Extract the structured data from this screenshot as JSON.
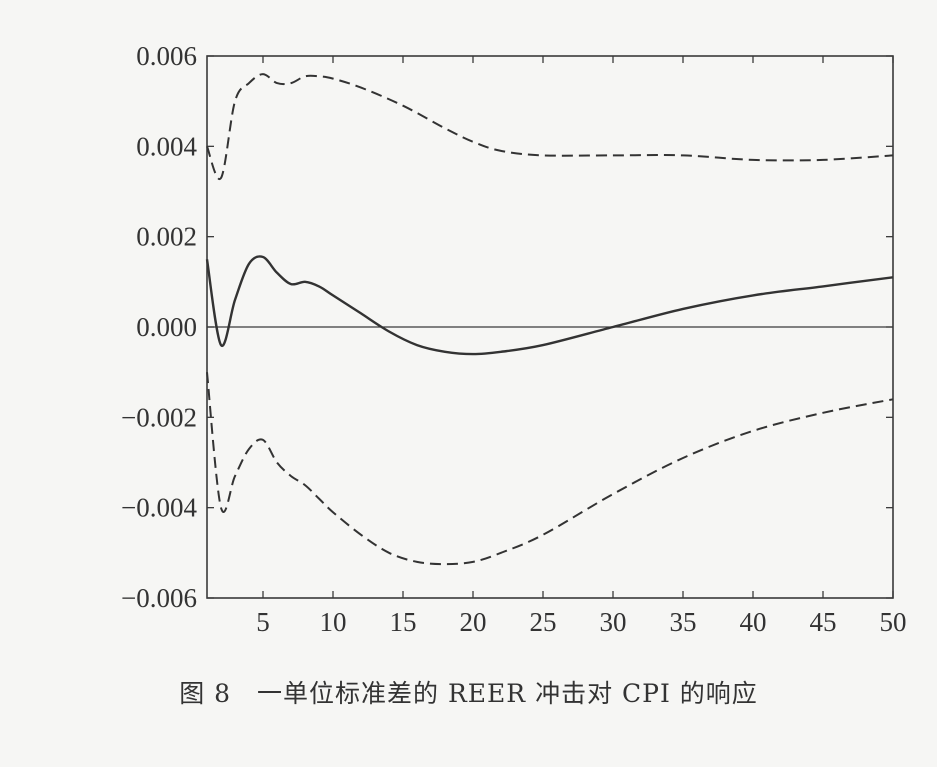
{
  "caption": "图 8　一单位标准差的 REER 冲击对 CPI 的响应",
  "chart_data": {
    "type": "line",
    "title": "",
    "xlabel": "",
    "ylabel": "",
    "xlim": [
      1,
      50
    ],
    "ylim": [
      -0.006,
      0.006
    ],
    "x_ticks": [
      5,
      10,
      15,
      20,
      25,
      30,
      35,
      40,
      45,
      50
    ],
    "x_tick_labels": [
      "5",
      "10",
      "15",
      "20",
      "25",
      "30",
      "35",
      "40",
      "45",
      "50"
    ],
    "y_ticks": [
      0.006,
      0.004,
      0.002,
      0.0,
      -0.002,
      -0.004,
      -0.006
    ],
    "y_tick_labels": [
      "0.006",
      "0.004",
      "0.002",
      "0.000",
      "−0.002",
      "−0.004",
      "−0.006"
    ],
    "grid": false,
    "zero_line": true,
    "series": [
      {
        "style": "solid",
        "color": "#333333",
        "x": [
          1,
          2,
          3,
          4,
          5,
          6,
          7,
          8,
          9,
          10,
          12,
          14,
          16,
          18,
          20,
          22,
          25,
          30,
          35,
          40,
          45,
          50
        ],
        "values": [
          0.0015,
          -0.0004,
          0.0006,
          0.0014,
          0.00155,
          0.0012,
          0.00095,
          0.001,
          0.0009,
          0.0007,
          0.0003,
          -0.0001,
          -0.0004,
          -0.00055,
          -0.0006,
          -0.00055,
          -0.0004,
          0.0,
          0.0004,
          0.0007,
          0.0009,
          0.0011
        ]
      },
      {
        "style": "dashed",
        "color": "#333333",
        "x": [
          1,
          2,
          3,
          4,
          5,
          6,
          7,
          8,
          9,
          10,
          12,
          15,
          18,
          20,
          22,
          25,
          30,
          35,
          40,
          45,
          50
        ],
        "values": [
          0.004,
          0.0033,
          0.005,
          0.0054,
          0.0056,
          0.0054,
          0.0054,
          0.00555,
          0.00555,
          0.0055,
          0.0053,
          0.0049,
          0.0044,
          0.0041,
          0.0039,
          0.0038,
          0.0038,
          0.0038,
          0.0037,
          0.0037,
          0.0038
        ]
      },
      {
        "style": "dashed",
        "color": "#333333",
        "x": [
          1,
          2,
          3,
          4,
          5,
          6,
          7,
          8,
          9,
          10,
          12,
          14,
          16,
          18,
          20,
          22,
          25,
          30,
          35,
          40,
          45,
          50
        ],
        "values": [
          -0.001,
          -0.004,
          -0.0033,
          -0.0027,
          -0.0025,
          -0.003,
          -0.0033,
          -0.0035,
          -0.0038,
          -0.0041,
          -0.0046,
          -0.005,
          -0.0052,
          -0.00525,
          -0.0052,
          -0.005,
          -0.0046,
          -0.0037,
          -0.0029,
          -0.0023,
          -0.0019,
          -0.0016
        ]
      }
    ]
  }
}
